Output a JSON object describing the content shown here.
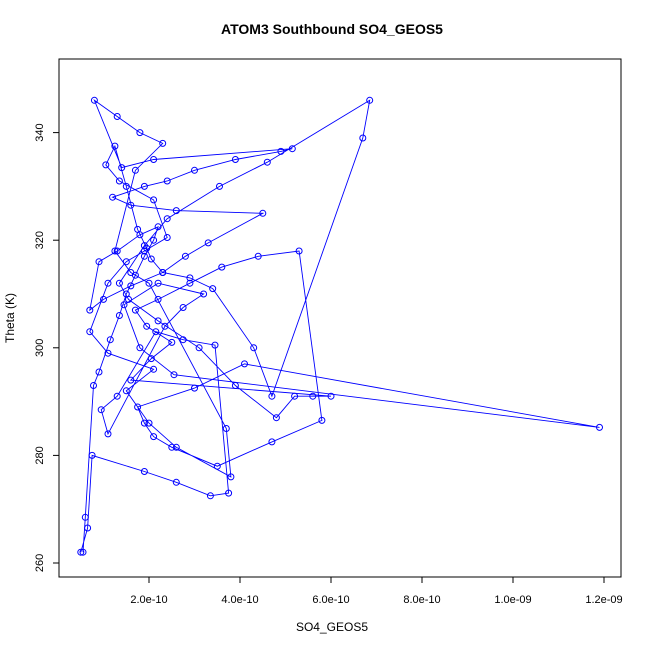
{
  "chart_data": {
    "type": "line",
    "title": "ATOM3 Southbound SO4_GEOS5",
    "xlabel": "SO4_GEOS5",
    "ylabel": "Theta (K)",
    "xlim": [
      0,
      1.2e-09
    ],
    "ylim": [
      262,
      350
    ],
    "grid": false,
    "legend": "none",
    "color": "#0000ff",
    "marker": "open-circle",
    "x_ticks": [
      {
        "value": 2e-10,
        "label": "2.0e-10"
      },
      {
        "value": 4e-10,
        "label": "4.0e-10"
      },
      {
        "value": 6e-10,
        "label": "6.0e-10"
      },
      {
        "value": 8e-10,
        "label": "8.0e-10"
      },
      {
        "value": 1e-09,
        "label": "1.0e-09"
      },
      {
        "value": 1.2e-09,
        "label": "1.2e-09"
      }
    ],
    "y_ticks": [
      {
        "value": 260,
        "label": "260"
      },
      {
        "value": 280,
        "label": "280"
      },
      {
        "value": 300,
        "label": "300"
      },
      {
        "value": 320,
        "label": "320"
      },
      {
        "value": 340,
        "label": "340"
      }
    ],
    "series": [
      {
        "x": [
          5.5e-11,
          6e-11,
          7.8e-11,
          9e-11,
          1.15e-10,
          1.35e-10,
          1.5e-10,
          1.7e-10,
          1.9e-10,
          2.1e-10,
          2.2e-10,
          1.8e-10,
          1.3e-10,
          9e-11,
          7e-11,
          1e-10,
          1.6e-10,
          2.3e-10,
          2.8e-10,
          3.3e-10,
          4.5e-10,
          2.6e-10,
          1.6e-10,
          1.2e-10,
          1.9e-10,
          2.4e-10,
          3e-10,
          3.9e-10,
          4.9e-10,
          5.15e-10,
          2.1e-10,
          1.4e-10,
          8e-11,
          1.3e-10,
          1.8e-10,
          2.3e-10,
          1.7e-10,
          1.25e-10,
          1.6e-10,
          2e-10,
          3.7e-10,
          3.8e-10,
          2.6e-10,
          2e-10,
          1.5e-10,
          2.1e-10,
          1.1e-10,
          7e-11,
          1.1e-10,
          1.5e-10,
          1.9e-10,
          2.4e-10,
          2.1e-10,
          1.35e-10,
          1.05e-10,
          1.25e-10,
          1.5e-10,
          1.75e-10,
          1.95e-10,
          2.05e-10,
          2.3e-10,
          2.9e-10,
          3.4e-10,
          4.3e-10,
          4.7e-10,
          6.7e-10,
          6.85e-10,
          4.6e-10,
          3.55e-10,
          2.4e-10,
          1.9e-10,
          1.35e-10,
          1.55e-10,
          2.2e-10,
          3.1e-10,
          3.9e-10,
          4.8e-10,
          5.2e-10,
          5.6e-10,
          6e-10,
          1.6e-10,
          2.05e-10,
          2.5e-10,
          1.95e-10,
          1.7e-10,
          2.2e-10,
          2.9e-10,
          3.6e-10,
          4.4e-10,
          5.3e-10,
          5.8e-10,
          4.7e-10,
          3.5e-10,
          2.5e-10,
          2.1e-10,
          1.9e-10,
          1.75e-10,
          3e-10,
          4.1e-10,
          1.19e-09,
          2.55e-10,
          1.8e-10,
          1.45e-10,
          2.2e-10,
          3.2e-10,
          2.75e-10,
          2.35e-10,
          1.1e-10,
          9.5e-11,
          1.3e-10,
          2.15e-10,
          2.75e-10,
          3.45e-10,
          3.75e-10,
          3.35e-10,
          2.6e-10,
          1.9e-10,
          7.5e-11,
          6.5e-11,
          5e-11
        ],
        "y": [
          262,
          268.5,
          293,
          295.5,
          301.5,
          306,
          310,
          313.5,
          317,
          320,
          322.5,
          321,
          318,
          316,
          307,
          309,
          311.5,
          314,
          317,
          319.5,
          325,
          325.5,
          326.5,
          328,
          330,
          331,
          333,
          335,
          336.5,
          337,
          335,
          333.5,
          346,
          343,
          340,
          338,
          333,
          318,
          314,
          312,
          285,
          276,
          281.5,
          286,
          292,
          296,
          299,
          303,
          312,
          316,
          318,
          320.5,
          327.5,
          331,
          334,
          337.5,
          330,
          322,
          318.5,
          316.5,
          314,
          313,
          311,
          300,
          291,
          339,
          346,
          334.5,
          330,
          324,
          319,
          312,
          309,
          305,
          300,
          293,
          287,
          291,
          291,
          291,
          294,
          298,
          301,
          304,
          307,
          309,
          312,
          315,
          317,
          318,
          286.5,
          282.5,
          278,
          281.5,
          283.5,
          286,
          289,
          292.5,
          297,
          285.2,
          295,
          300,
          308,
          312,
          310,
          307.5,
          304,
          284,
          288.5,
          291,
          303,
          301.5,
          300.5,
          273,
          272.5,
          275,
          277,
          280,
          266.5,
          262
        ]
      }
    ]
  }
}
